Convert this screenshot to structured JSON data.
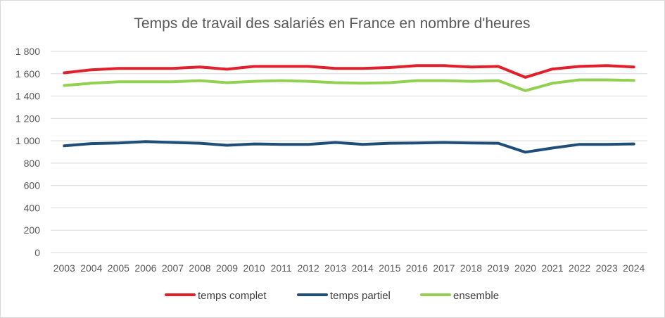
{
  "chart_data": {
    "type": "line",
    "title": "Temps de travail des salariés en France en nombre d'heures",
    "xlabel": "",
    "ylabel": "",
    "ylim": [
      0,
      1800
    ],
    "yticks": [
      0,
      200,
      400,
      600,
      800,
      1000,
      1200,
      1400,
      1600,
      1800
    ],
    "ytick_labels": [
      "0",
      "200",
      "400",
      "600",
      "800",
      "1 000",
      "1 200",
      "1 400",
      "1 600",
      "1 800"
    ],
    "grid": true,
    "legend_position": "bottom",
    "categories": [
      "2003",
      "2004",
      "2005",
      "2006",
      "2007",
      "2008",
      "2009",
      "2010",
      "2011",
      "2012",
      "2013",
      "2014",
      "2015",
      "2016",
      "2017",
      "2018",
      "2019",
      "2020",
      "2021",
      "2022",
      "2023",
      "2024"
    ],
    "series": [
      {
        "name": "temps complet",
        "color": "#e0202a",
        "values": [
          1608,
          1635,
          1648,
          1648,
          1648,
          1660,
          1640,
          1665,
          1665,
          1665,
          1648,
          1648,
          1655,
          1672,
          1672,
          1660,
          1665,
          1568,
          1642,
          1665,
          1672,
          1660
        ]
      },
      {
        "name": "temps partiel",
        "color": "#1f4e79",
        "values": [
          955,
          975,
          980,
          993,
          985,
          978,
          960,
          972,
          968,
          968,
          985,
          968,
          978,
          980,
          985,
          980,
          978,
          898,
          935,
          968,
          968,
          972
        ]
      },
      {
        "name": "ensemble",
        "color": "#92d050",
        "values": [
          1495,
          1515,
          1528,
          1528,
          1528,
          1538,
          1520,
          1532,
          1538,
          1532,
          1520,
          1515,
          1520,
          1538,
          1538,
          1532,
          1538,
          1448,
          1515,
          1545,
          1545,
          1540
        ]
      }
    ]
  }
}
